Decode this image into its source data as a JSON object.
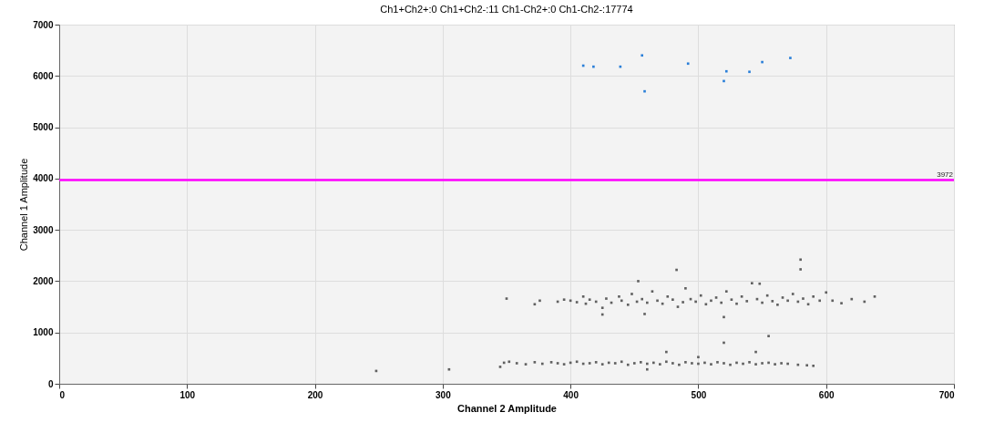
{
  "chart_data": {
    "type": "scatter",
    "title": "Ch1+Ch2+:0  Ch1+Ch2-:11  Ch1-Ch2+:0  Ch1-Ch2-:17774",
    "xlabel": "Channel 2 Amplitude",
    "ylabel": "Channel 1 Amplitude",
    "xlim": [
      0,
      700
    ],
    "xticks": [
      0,
      100,
      200,
      300,
      400,
      500,
      600,
      700
    ],
    "ylim": [
      0,
      7000
    ],
    "yticks": [
      0,
      1000,
      2000,
      3000,
      4000,
      5000,
      6000,
      7000
    ],
    "grid": true,
    "marker": "square",
    "ref_lines": [
      {
        "axis": "y",
        "value": 3972,
        "label": "3972",
        "color": "#ff00ff"
      }
    ],
    "series": [
      {
        "color": "#2a7fd8",
        "x": [
          410,
          418,
          439,
          456,
          458,
          492,
          520,
          522,
          540,
          550,
          572
        ],
        "values": [
          6200,
          6180,
          6180,
          6400,
          5700,
          6240,
          5900,
          6090,
          6080,
          6270,
          6350
        ]
      },
      {
        "color": "#606060",
        "x": [
          345,
          348,
          352,
          358,
          365,
          372,
          378,
          385,
          390,
          395,
          400,
          405,
          410,
          415,
          420,
          425,
          430,
          435,
          440,
          445,
          450,
          455,
          460,
          465,
          470,
          475,
          480,
          485,
          490,
          495,
          500,
          505,
          510,
          515,
          520,
          525,
          530,
          535,
          540,
          545,
          550,
          555,
          560,
          565,
          570,
          578,
          585,
          590,
          248,
          305,
          475,
          520,
          545,
          555,
          500,
          460,
          350,
          372,
          376,
          390,
          395,
          400,
          405,
          410,
          412,
          415,
          420,
          425,
          428,
          432,
          438,
          440,
          445,
          448,
          452,
          456,
          458,
          460,
          464,
          468,
          472,
          476,
          480,
          484,
          488,
          490,
          494,
          498,
          502,
          506,
          510,
          514,
          518,
          522,
          526,
          530,
          534,
          538,
          542,
          546,
          550,
          554,
          558,
          562,
          566,
          570,
          574,
          578,
          582,
          586,
          590,
          595,
          600,
          605,
          612,
          620,
          630,
          638,
          483,
          580,
          580,
          548,
          453,
          520,
          425
        ],
        "values": [
          330,
          410,
          430,
          400,
          380,
          420,
          390,
          420,
          400,
          380,
          410,
          430,
          390,
          400,
          420,
          380,
          410,
          400,
          430,
          370,
          400,
          420,
          390,
          410,
          380,
          430,
          400,
          370,
          420,
          400,
          390,
          410,
          380,
          420,
          400,
          370,
          410,
          390,
          420,
          380,
          400,
          410,
          380,
          400,
          390,
          370,
          360,
          350,
          250,
          280,
          620,
          800,
          620,
          930,
          520,
          280,
          1660,
          1550,
          1620,
          1600,
          1640,
          1620,
          1590,
          1700,
          1560,
          1640,
          1600,
          1480,
          1660,
          1580,
          1700,
          1620,
          1540,
          1750,
          1600,
          1650,
          1360,
          1580,
          1800,
          1620,
          1560,
          1700,
          1640,
          1500,
          1590,
          1860,
          1650,
          1600,
          1720,
          1550,
          1620,
          1680,
          1580,
          1800,
          1640,
          1560,
          1700,
          1610,
          1960,
          1650,
          1580,
          1720,
          1610,
          1540,
          1680,
          1620,
          1750,
          1600,
          1660,
          1550,
          1700,
          1620,
          1780,
          1620,
          1570,
          1650,
          1600,
          1700,
          2220,
          2420,
          2230,
          1950,
          2000,
          1300,
          1350
        ]
      }
    ]
  }
}
